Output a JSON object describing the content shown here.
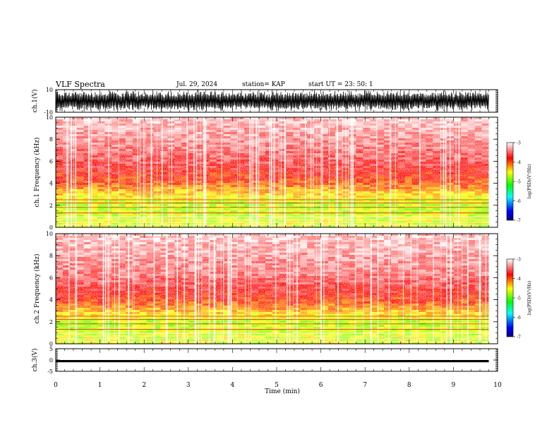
{
  "header": {
    "title": "VLF Spectra",
    "date": "Jul. 29, 2024",
    "station": "station= KAP",
    "start_time": "start UT = 23: 50: 1"
  },
  "colorbar": {
    "label": "log(PSD)(V²/Hz)",
    "tick_labels": [
      "-3",
      "-4",
      "-5",
      "-6",
      "-7"
    ]
  },
  "chart_data": [
    {
      "type": "line",
      "name": "ch1-waveform",
      "ylabel": "ch.1(V)",
      "ylim": [
        -10,
        10
      ],
      "ytick_labels": [
        "10",
        "-10"
      ],
      "xlim": [
        0,
        10
      ]
    },
    {
      "type": "heatmap",
      "name": "ch1-spectrogram",
      "ylabel": "ch.1 Frequency (kHz)",
      "ylim": [
        0,
        10
      ],
      "ytick_labels": [
        "0",
        "2",
        "4",
        "6",
        "8",
        "10"
      ],
      "xlim": [
        0,
        10
      ],
      "data_end_min": 9.8,
      "color_range": [
        -7,
        -3
      ],
      "colors": [
        "#000080",
        "#0000ff",
        "#00ffff",
        "#00ff00",
        "#ffff00",
        "#ff0000",
        "#ffffff"
      ],
      "band_profile": [
        {
          "freq_khz": 0.5,
          "log_psd": -4.6
        },
        {
          "freq_khz": 2.0,
          "log_psd": -4.7
        },
        {
          "freq_khz": 3.0,
          "log_psd": -4.4
        },
        {
          "freq_khz": 4.0,
          "log_psd": -4.0
        },
        {
          "freq_khz": 6.0,
          "log_psd": -3.6
        },
        {
          "freq_khz": 10.0,
          "log_psd": -3.2
        }
      ]
    },
    {
      "type": "heatmap",
      "name": "ch2-spectrogram",
      "ylabel": "ch.2 Frequency (kHz)",
      "ylim": [
        0,
        10
      ],
      "ytick_labels": [
        "0",
        "2",
        "4",
        "6",
        "8",
        "10"
      ],
      "xlim": [
        0,
        10
      ],
      "data_end_min": 9.8,
      "color_range": [
        -7,
        -3
      ],
      "colors": [
        "#000080",
        "#0000ff",
        "#00ffff",
        "#00ff00",
        "#ffff00",
        "#ff0000",
        "#ffffff"
      ],
      "band_profile": [
        {
          "freq_khz": 0.5,
          "log_psd": -4.6
        },
        {
          "freq_khz": 2.0,
          "log_psd": -4.7
        },
        {
          "freq_khz": 3.0,
          "log_psd": -4.3
        },
        {
          "freq_khz": 4.0,
          "log_psd": -3.9
        },
        {
          "freq_khz": 6.0,
          "log_psd": -3.5
        },
        {
          "freq_khz": 10.0,
          "log_psd": -3.2
        }
      ]
    },
    {
      "type": "line",
      "name": "ch3-waveform",
      "ylabel": "ch.3(V)",
      "ylim": [
        -5,
        5
      ],
      "ytick_labels": [
        "5",
        "0",
        "-5"
      ],
      "xlim": [
        0,
        10
      ],
      "signal_range": [
        -1.0,
        0.0
      ]
    }
  ],
  "x_axis": {
    "label": "Time (min)",
    "tick_labels": [
      "0",
      "1",
      "2",
      "3",
      "4",
      "5",
      "6",
      "7",
      "8",
      "9",
      "10"
    ]
  }
}
